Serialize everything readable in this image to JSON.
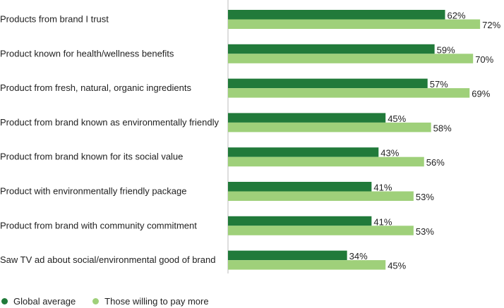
{
  "chart_data": {
    "type": "bar",
    "orientation": "horizontal",
    "title": "",
    "xlabel": "",
    "ylabel": "",
    "xlim": [
      0,
      80
    ],
    "grid": false,
    "legend_position": "bottom-left",
    "value_suffix": "%",
    "categories": [
      "Products from brand I trust",
      "Product known for health/wellness benefits",
      "Product from fresh, natural, organic ingredients",
      "Product from brand known as environmentally friendly",
      "Product from brand known for its social value",
      "Product with environmentally friendly package",
      "Product from brand with community commitment",
      "Saw TV ad about social/environmental good of brand"
    ],
    "series": [
      {
        "name": "Global average",
        "color": "#217a3a",
        "values": [
          62,
          59,
          57,
          45,
          43,
          41,
          41,
          34
        ]
      },
      {
        "name": "Those willing to pay more",
        "color": "#9fd07a",
        "values": [
          72,
          70,
          69,
          58,
          56,
          53,
          53,
          45
        ]
      }
    ]
  }
}
